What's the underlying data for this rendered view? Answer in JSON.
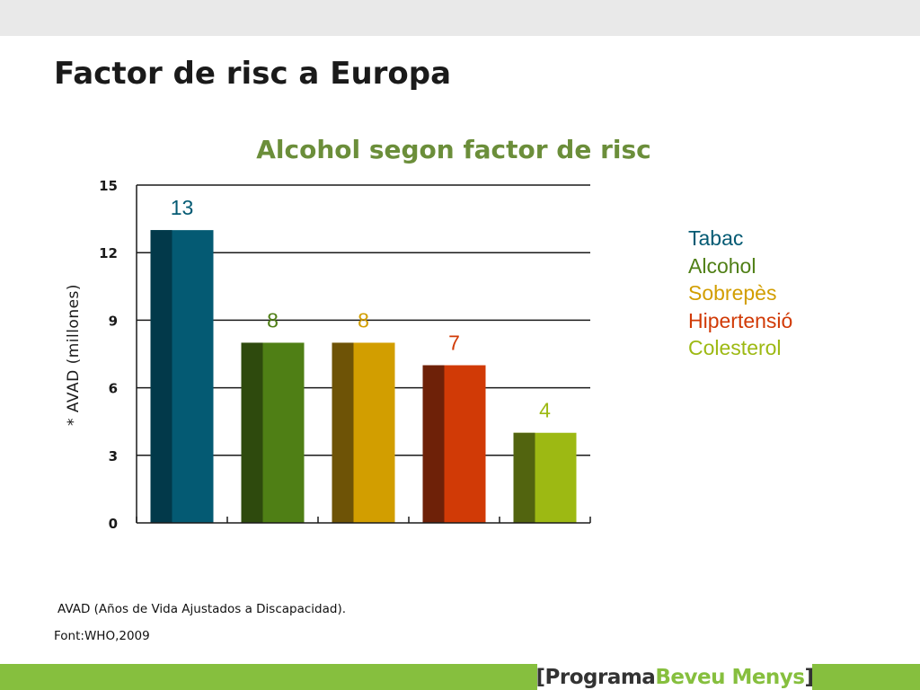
{
  "slide": {
    "title": "Factor de risc a Europa",
    "footnote": "AVAD (Años de Vida Ajustados a Discapacidad).",
    "source": "Font:WHO,2009"
  },
  "brand": {
    "open_bracket": "[",
    "word1": "Programa",
    "word2": "Beveu Menys",
    "close_bracket": "]"
  },
  "colors": {
    "accent_green": "#86bf3e",
    "title_green": "#6b8e3a"
  },
  "chart_data": {
    "type": "bar",
    "title": "Alcohol segon factor de risc",
    "xlabel": "",
    "ylabel": "* AVAD (millones)",
    "ylim": [
      0,
      15
    ],
    "yticks": [
      0,
      3,
      6,
      9,
      12,
      15
    ],
    "grid": true,
    "legend_position": "right",
    "categories": [
      "Tabac",
      "Alcohol",
      "Sobrepès",
      "Hipertensió",
      "Colesterol"
    ],
    "values": [
      13,
      8,
      8,
      7,
      4
    ],
    "data_labels": [
      "13",
      "8",
      "8",
      "7",
      "4"
    ],
    "colors": [
      "#045a73",
      "#4f7f15",
      "#d29e00",
      "#d13a06",
      "#9db913"
    ],
    "shade_colors": [
      "#02394a",
      "#2e4a0d",
      "#6e5306",
      "#6e2108",
      "#52640f"
    ],
    "legend": [
      "Tabac",
      "Alcohol",
      "Sobrepès",
      "Hipertensió",
      "Colesterol"
    ]
  }
}
